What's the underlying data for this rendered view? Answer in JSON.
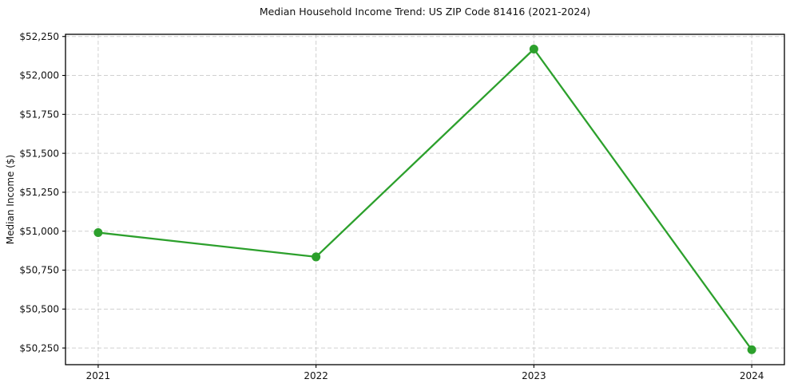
{
  "chart_data": {
    "type": "line",
    "title": "Median Household Income Trend: US ZIP Code 81416 (2021-2024)",
    "xlabel": "",
    "ylabel": "Median Income ($)",
    "x": [
      2021,
      2022,
      2023,
      2024
    ],
    "x_tick_labels": [
      "2021",
      "2022",
      "2023",
      "2024"
    ],
    "series": [
      {
        "name": "Median Household Income",
        "values": [
          50991,
          50835,
          52169,
          50239
        ]
      }
    ],
    "y_ticks": [
      50250,
      50500,
      50750,
      51000,
      51250,
      51500,
      51750,
      52000,
      52250
    ],
    "y_tick_labels": [
      "$50,250",
      "$50,500",
      "$50,750",
      "$51,000",
      "$51,250",
      "$51,500",
      "$51,750",
      "$52,000",
      "$52,250"
    ],
    "xlim": [
      2020.85,
      2024.15
    ],
    "ylim": [
      50143,
      52264
    ],
    "grid": true,
    "grid_style": "dashed",
    "legend": false,
    "line_color": "#2ca02c",
    "marker": "circle",
    "background": "#ffffff"
  }
}
